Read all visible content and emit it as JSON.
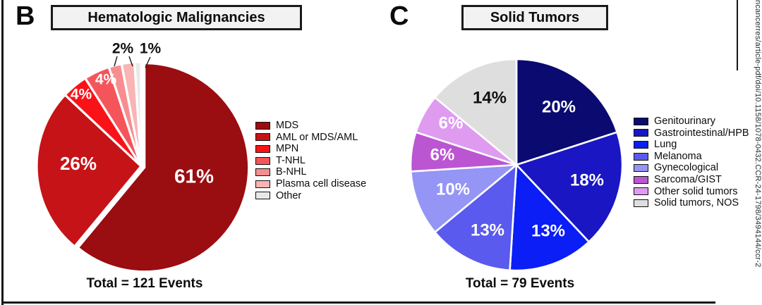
{
  "panels": [
    {
      "letter": "B",
      "title": "Hematologic Malignancies",
      "total": "Total = 121 Events"
    },
    {
      "letter": "C",
      "title": "Solid Tumors",
      "total": "Total = 79 Events"
    }
  ],
  "watermark": {
    "text": "ncancerres/article-pdf/doi/10.1158/1078-0432.CCR-24-1798/3494144/ccr-2"
  },
  "chart_data": [
    {
      "type": "pie",
      "panel": "B",
      "title": "Hematologic Malignancies",
      "total_events": 121,
      "total_label": "Total = 121 Events",
      "start_angle_deg": 0,
      "direction": "clockwise",
      "legend_position": "right",
      "slices": [
        {
          "label": "MDS",
          "pct": 61,
          "text": "61%",
          "text_color": "#ffffff",
          "color": "#9A0D10",
          "exploded": true
        },
        {
          "label": "AML or MDS/AML",
          "pct": 26,
          "text": "26%",
          "text_color": "#ffffff",
          "color": "#C51317"
        },
        {
          "label": "MPN",
          "pct": 4,
          "text": "4%",
          "text_color": "#ffffff",
          "color": "#F91319"
        },
        {
          "label": "T-NHL",
          "pct": 4,
          "text": "4%",
          "text_color": "#ffffff",
          "color": "#F4555A"
        },
        {
          "label": "B-NHL",
          "pct": 2,
          "text": "2%",
          "text_color": "#111111",
          "color": "#F68E90",
          "label_outside": true
        },
        {
          "label": "Plasma cell disease",
          "pct": 2,
          "text": "",
          "text_color": "#111111",
          "color": "#F9B4B6",
          "label_outside": true
        },
        {
          "label": "Other",
          "pct": 1,
          "text": "1%",
          "text_color": "#111111",
          "color": "#E9E9E9",
          "label_outside": true
        }
      ]
    },
    {
      "type": "pie",
      "panel": "C",
      "title": "Solid Tumors",
      "total_events": 79,
      "total_label": "Total = 79 Events",
      "start_angle_deg": 0,
      "direction": "clockwise",
      "legend_position": "right",
      "slices": [
        {
          "label": "Genitourinary",
          "pct": 20,
          "text": "20%",
          "text_color": "#ffffff",
          "color": "#0A0A70"
        },
        {
          "label": "Gastrointestinal/HPB",
          "pct": 18,
          "text": "18%",
          "text_color": "#ffffff",
          "color": "#1A16C4"
        },
        {
          "label": "Lung",
          "pct": 13,
          "text": "13%",
          "text_color": "#ffffff",
          "color": "#0A1EF5"
        },
        {
          "label": "Melanoma",
          "pct": 13,
          "text": "13%",
          "text_color": "#ffffff",
          "color": "#5A5AEE"
        },
        {
          "label": "Gynecological",
          "pct": 10,
          "text": "10%",
          "text_color": "#ffffff",
          "color": "#9595F5"
        },
        {
          "label": "Sarcoma/GIST",
          "pct": 6,
          "text": "6%",
          "text_color": "#ffffff",
          "color": "#BB55D2"
        },
        {
          "label": "Other solid tumors",
          "pct": 6,
          "text": "6%",
          "text_color": "#ffffff",
          "color": "#DE9BF0"
        },
        {
          "label": "Solid tumors, NOS",
          "pct": 14,
          "text": "14%",
          "text_color": "#111111",
          "color": "#DEDEDE"
        }
      ]
    }
  ]
}
